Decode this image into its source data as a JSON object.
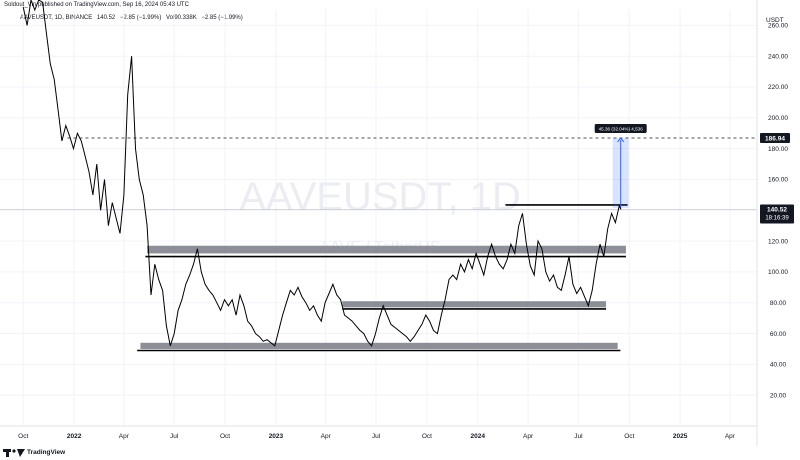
{
  "header": {
    "published_text": "Soldout_Vin published on TradingView.com, Sep 16, 2024 05:43 UTC"
  },
  "legend": {
    "symbol": "AAVEUSDT, 1D, BINANCE",
    "close": "140.52",
    "change": "−2.85 (−1.99%)",
    "volume": "Vol90.338K",
    "volume_change": "−2.85 (−1.99%)"
  },
  "price_scale": {
    "currency": "USDT"
  },
  "watermark": {
    "title": "AAVEUSDT, 1D",
    "subtitle": "AAVE / TetherUS"
  },
  "last_price": {
    "value": "140.52",
    "countdown": "18:16:39",
    "color": "#131722"
  },
  "target": {
    "value": "186.94",
    "measure_label": "45.36 (32.04%) 4,536",
    "color": "#2962ff"
  },
  "footer": {
    "brand": "TradingView"
  },
  "colors": {
    "zone": "#787b86",
    "line": "#000000",
    "grid": "#f0f3fa"
  },
  "chart_data": {
    "type": "line",
    "ylim": [
      0,
      270
    ],
    "y_ticks": [
      260,
      240,
      220,
      200,
      180,
      160,
      140,
      120,
      100,
      80,
      60,
      40,
      20
    ],
    "x_ticks": [
      "Oct",
      "2022",
      "Apr",
      "Jul",
      "Oct",
      "2023",
      "Apr",
      "Jul",
      "Oct",
      "2024",
      "Apr",
      "Jul",
      "Oct",
      "2025",
      "Apr"
    ],
    "x_tick_dates": [
      "2021-10-01",
      "2022-01-01",
      "2022-04-01",
      "2022-07-01",
      "2022-10-01",
      "2023-01-01",
      "2023-04-01",
      "2023-07-01",
      "2023-10-01",
      "2024-01-01",
      "2024-04-01",
      "2024-07-01",
      "2024-10-01",
      "2025-01-01",
      "2025-04-01"
    ],
    "series": [
      {
        "x": [
          "2021-10-01",
          "2021-10-08",
          "2021-10-15",
          "2021-10-22",
          "2021-10-29",
          "2021-11-05",
          "2021-11-12",
          "2021-11-19",
          "2021-11-26",
          "2021-12-03",
          "2021-12-10",
          "2021-12-17",
          "2021-12-24",
          "2021-12-31",
          "2022-01-07",
          "2022-01-14",
          "2022-01-21",
          "2022-01-28",
          "2022-02-04",
          "2022-02-11",
          "2022-02-18",
          "2022-02-25",
          "2022-03-04",
          "2022-03-11",
          "2022-03-18",
          "2022-03-25",
          "2022-04-01",
          "2022-04-08",
          "2022-04-15",
          "2022-04-22",
          "2022-04-29",
          "2022-05-06",
          "2022-05-13",
          "2022-05-20",
          "2022-05-27",
          "2022-06-03",
          "2022-06-10",
          "2022-06-17",
          "2022-06-24",
          "2022-07-01",
          "2022-07-08",
          "2022-07-15",
          "2022-07-22",
          "2022-07-29",
          "2022-08-05",
          "2022-08-12",
          "2022-08-19",
          "2022-08-26",
          "2022-09-02",
          "2022-09-09",
          "2022-09-16",
          "2022-09-23",
          "2022-09-30",
          "2022-10-07",
          "2022-10-14",
          "2022-10-21",
          "2022-10-28",
          "2022-11-04",
          "2022-11-11",
          "2022-11-18",
          "2022-11-25",
          "2022-12-02",
          "2022-12-09",
          "2022-12-16",
          "2022-12-23",
          "2022-12-30",
          "2023-01-06",
          "2023-01-13",
          "2023-01-20",
          "2023-01-27",
          "2023-02-03",
          "2023-02-10",
          "2023-02-17",
          "2023-02-24",
          "2023-03-03",
          "2023-03-10",
          "2023-03-17",
          "2023-03-24",
          "2023-03-31",
          "2023-04-07",
          "2023-04-14",
          "2023-04-21",
          "2023-04-28",
          "2023-05-05",
          "2023-05-12",
          "2023-05-19",
          "2023-05-26",
          "2023-06-02",
          "2023-06-09",
          "2023-06-16",
          "2023-06-23",
          "2023-06-30",
          "2023-07-07",
          "2023-07-14",
          "2023-07-21",
          "2023-07-28",
          "2023-08-04",
          "2023-08-11",
          "2023-08-18",
          "2023-08-25",
          "2023-09-01",
          "2023-09-08",
          "2023-09-15",
          "2023-09-22",
          "2023-09-29",
          "2023-10-06",
          "2023-10-13",
          "2023-10-20",
          "2023-10-27",
          "2023-11-03",
          "2023-11-10",
          "2023-11-17",
          "2023-11-24",
          "2023-12-01",
          "2023-12-08",
          "2023-12-15",
          "2023-12-22",
          "2023-12-29",
          "2024-01-05",
          "2024-01-12",
          "2024-01-19",
          "2024-01-26",
          "2024-02-02",
          "2024-02-09",
          "2024-02-16",
          "2024-02-23",
          "2024-03-01",
          "2024-03-08",
          "2024-03-15",
          "2024-03-22",
          "2024-03-29",
          "2024-04-05",
          "2024-04-12",
          "2024-04-19",
          "2024-04-26",
          "2024-05-03",
          "2024-05-10",
          "2024-05-17",
          "2024-05-24",
          "2024-05-31",
          "2024-06-07",
          "2024-06-14",
          "2024-06-21",
          "2024-06-28",
          "2024-07-05",
          "2024-07-12",
          "2024-07-19",
          "2024-07-26",
          "2024-08-02",
          "2024-08-09",
          "2024-08-16",
          "2024-08-23",
          "2024-08-30",
          "2024-09-06",
          "2024-09-13",
          "2024-09-16"
        ],
        "values": [
          272,
          260,
          285,
          270,
          290,
          275,
          255,
          235,
          225,
          205,
          185,
          195,
          188,
          180,
          190,
          185,
          175,
          165,
          150,
          170,
          140,
          160,
          130,
          145,
          135,
          125,
          150,
          215,
          240,
          180,
          160,
          150,
          130,
          85,
          105,
          95,
          88,
          65,
          52,
          60,
          75,
          82,
          92,
          98,
          105,
          115,
          100,
          92,
          88,
          85,
          80,
          75,
          82,
          78,
          82,
          72,
          85,
          78,
          68,
          65,
          60,
          58,
          55,
          56,
          54,
          52,
          62,
          72,
          80,
          88,
          85,
          90,
          84,
          80,
          75,
          78,
          72,
          68,
          80,
          86,
          92,
          85,
          82,
          72,
          70,
          68,
          65,
          62,
          60,
          55,
          52,
          60,
          70,
          78,
          72,
          66,
          64,
          62,
          60,
          58,
          55,
          58,
          62,
          66,
          72,
          68,
          62,
          60,
          72,
          82,
          95,
          98,
          95,
          105,
          100,
          108,
          102,
          112,
          105,
          98,
          110,
          118,
          110,
          105,
          102,
          108,
          118,
          112,
          130,
          138,
          118,
          104,
          98,
          120,
          115,
          100,
          94,
          98,
          90,
          88,
          98,
          110,
          92,
          86,
          90,
          84,
          78,
          88,
          105,
          118,
          110,
          128,
          138,
          132,
          143,
          140.52
        ]
      }
    ],
    "horizontal_levels": [
      {
        "name": "zone_top",
        "y_range": [
          112,
          117
        ]
      },
      {
        "name": "level_upper",
        "y": 110
      },
      {
        "name": "zone_mid",
        "y_range": [
          77,
          81
        ]
      },
      {
        "name": "level_mid",
        "y": 76
      },
      {
        "name": "zone_bottom",
        "y_range": [
          50,
          54
        ]
      },
      {
        "name": "level_bottom",
        "y": 49
      },
      {
        "name": "breakout_line",
        "y": 143.5
      },
      {
        "name": "target_line",
        "y": 186.94
      },
      {
        "name": "last_price_line",
        "y": 140.52
      }
    ],
    "measure": {
      "from": 141.58,
      "to": 186.94,
      "change": 45.36,
      "pct": 32.04
    }
  }
}
